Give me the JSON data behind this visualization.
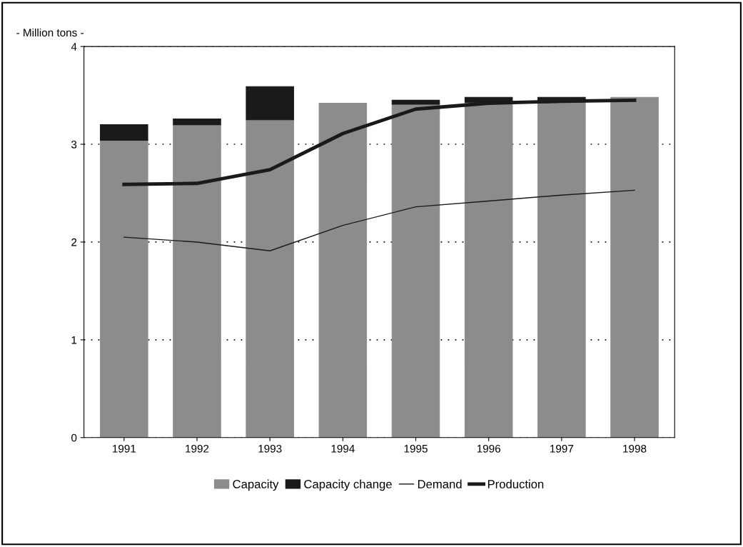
{
  "chart_data": {
    "type": "bar",
    "stacked": true,
    "ylabel": "- Million tons -",
    "categories": [
      "1991",
      "1992",
      "1993",
      "1994",
      "1995",
      "1996",
      "1997",
      "1998"
    ],
    "series": [
      {
        "name": "Capacity",
        "color": "#8c8c8c",
        "values": [
          3.04,
          3.2,
          3.25,
          3.42,
          3.41,
          3.43,
          3.45,
          3.48
        ]
      },
      {
        "name": "Capacity change",
        "color": "#1a1a1a",
        "values": [
          0.16,
          0.06,
          0.34,
          null,
          0.04,
          0.05,
          0.03,
          null
        ]
      },
      {
        "name": "Demand",
        "type": "line",
        "color": "#1a1a1a",
        "values": [
          2.05,
          2.0,
          1.91,
          2.17,
          2.36,
          2.42,
          2.48,
          2.53
        ]
      },
      {
        "name": "Production",
        "type": "line",
        "color": "#1a1a1a",
        "values": [
          2.59,
          2.6,
          2.74,
          3.11,
          3.36,
          3.42,
          3.44,
          3.45
        ]
      }
    ],
    "ylim": [
      0,
      4
    ],
    "yticks": [
      0,
      1,
      2,
      3,
      4
    ],
    "grid": "y",
    "legend": "bottom"
  }
}
